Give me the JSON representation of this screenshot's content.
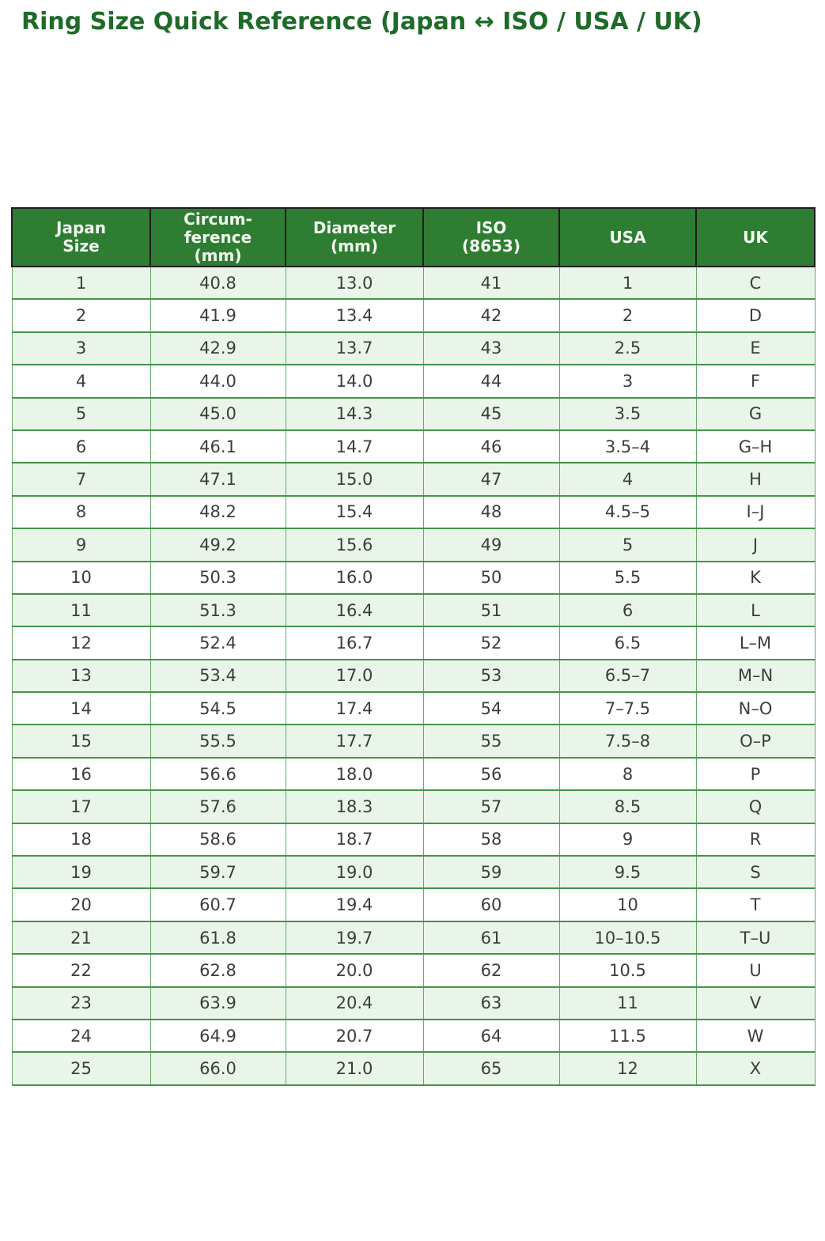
{
  "page": {
    "title": "Ring Size Quick Reference (Japan ↔ ISO / USA / UK)"
  },
  "chart_data": {
    "type": "table",
    "title": "Ring Size Quick Reference (Japan ↔ ISO / USA / UK)",
    "columns": [
      "Japan Size",
      "Circumference (mm)",
      "Diameter (mm)",
      "ISO (8653)",
      "USA",
      "UK"
    ],
    "column_display": [
      "Japan\nSize",
      "Circum-\nference\n(mm)",
      "Diameter\n(mm)",
      "ISO\n(8653)",
      "USA",
      "UK"
    ],
    "rows": [
      [
        "1",
        "40.8",
        "13.0",
        "41",
        "1",
        "C"
      ],
      [
        "2",
        "41.9",
        "13.4",
        "42",
        "2",
        "D"
      ],
      [
        "3",
        "42.9",
        "13.7",
        "43",
        "2.5",
        "E"
      ],
      [
        "4",
        "44.0",
        "14.0",
        "44",
        "3",
        "F"
      ],
      [
        "5",
        "45.0",
        "14.3",
        "45",
        "3.5",
        "G"
      ],
      [
        "6",
        "46.1",
        "14.7",
        "46",
        "3.5–4",
        "G–H"
      ],
      [
        "7",
        "47.1",
        "15.0",
        "47",
        "4",
        "H"
      ],
      [
        "8",
        "48.2",
        "15.4",
        "48",
        "4.5–5",
        "I–J"
      ],
      [
        "9",
        "49.2",
        "15.6",
        "49",
        "5",
        "J"
      ],
      [
        "10",
        "50.3",
        "16.0",
        "50",
        "5.5",
        "K"
      ],
      [
        "11",
        "51.3",
        "16.4",
        "51",
        "6",
        "L"
      ],
      [
        "12",
        "52.4",
        "16.7",
        "52",
        "6.5",
        "L–M"
      ],
      [
        "13",
        "53.4",
        "17.0",
        "53",
        "6.5–7",
        "M–N"
      ],
      [
        "14",
        "54.5",
        "17.4",
        "54",
        "7–7.5",
        "N–O"
      ],
      [
        "15",
        "55.5",
        "17.7",
        "55",
        "7.5–8",
        "O–P"
      ],
      [
        "16",
        "56.6",
        "18.0",
        "56",
        "8",
        "P"
      ],
      [
        "17",
        "57.6",
        "18.3",
        "57",
        "8.5",
        "Q"
      ],
      [
        "18",
        "58.6",
        "18.7",
        "58",
        "9",
        "R"
      ],
      [
        "19",
        "59.7",
        "19.0",
        "59",
        "9.5",
        "S"
      ],
      [
        "20",
        "60.7",
        "19.4",
        "60",
        "10",
        "T"
      ],
      [
        "21",
        "61.8",
        "19.7",
        "61",
        "10–10.5",
        "T–U"
      ],
      [
        "22",
        "62.8",
        "20.0",
        "62",
        "10.5",
        "U"
      ],
      [
        "23",
        "63.9",
        "20.4",
        "63",
        "11",
        "V"
      ],
      [
        "24",
        "64.9",
        "20.7",
        "64",
        "11.5",
        "W"
      ],
      [
        "25",
        "66.0",
        "21.0",
        "65",
        "12",
        "X"
      ]
    ],
    "layout": {
      "striped": true,
      "stripe_odd_rows": true,
      "grid": true
    }
  },
  "colors": {
    "title_text": "#1e6b29",
    "header_bg": "#2e7d32",
    "header_text": "#f3faf0",
    "header_border": "#1d1d1d",
    "row_stripe_bg": "#e9f5e9",
    "row_plain_bg": "#ffffff",
    "grid_border": "#459349",
    "cell_text": "#3d3d3d",
    "page_bg": "#ffffff"
  }
}
